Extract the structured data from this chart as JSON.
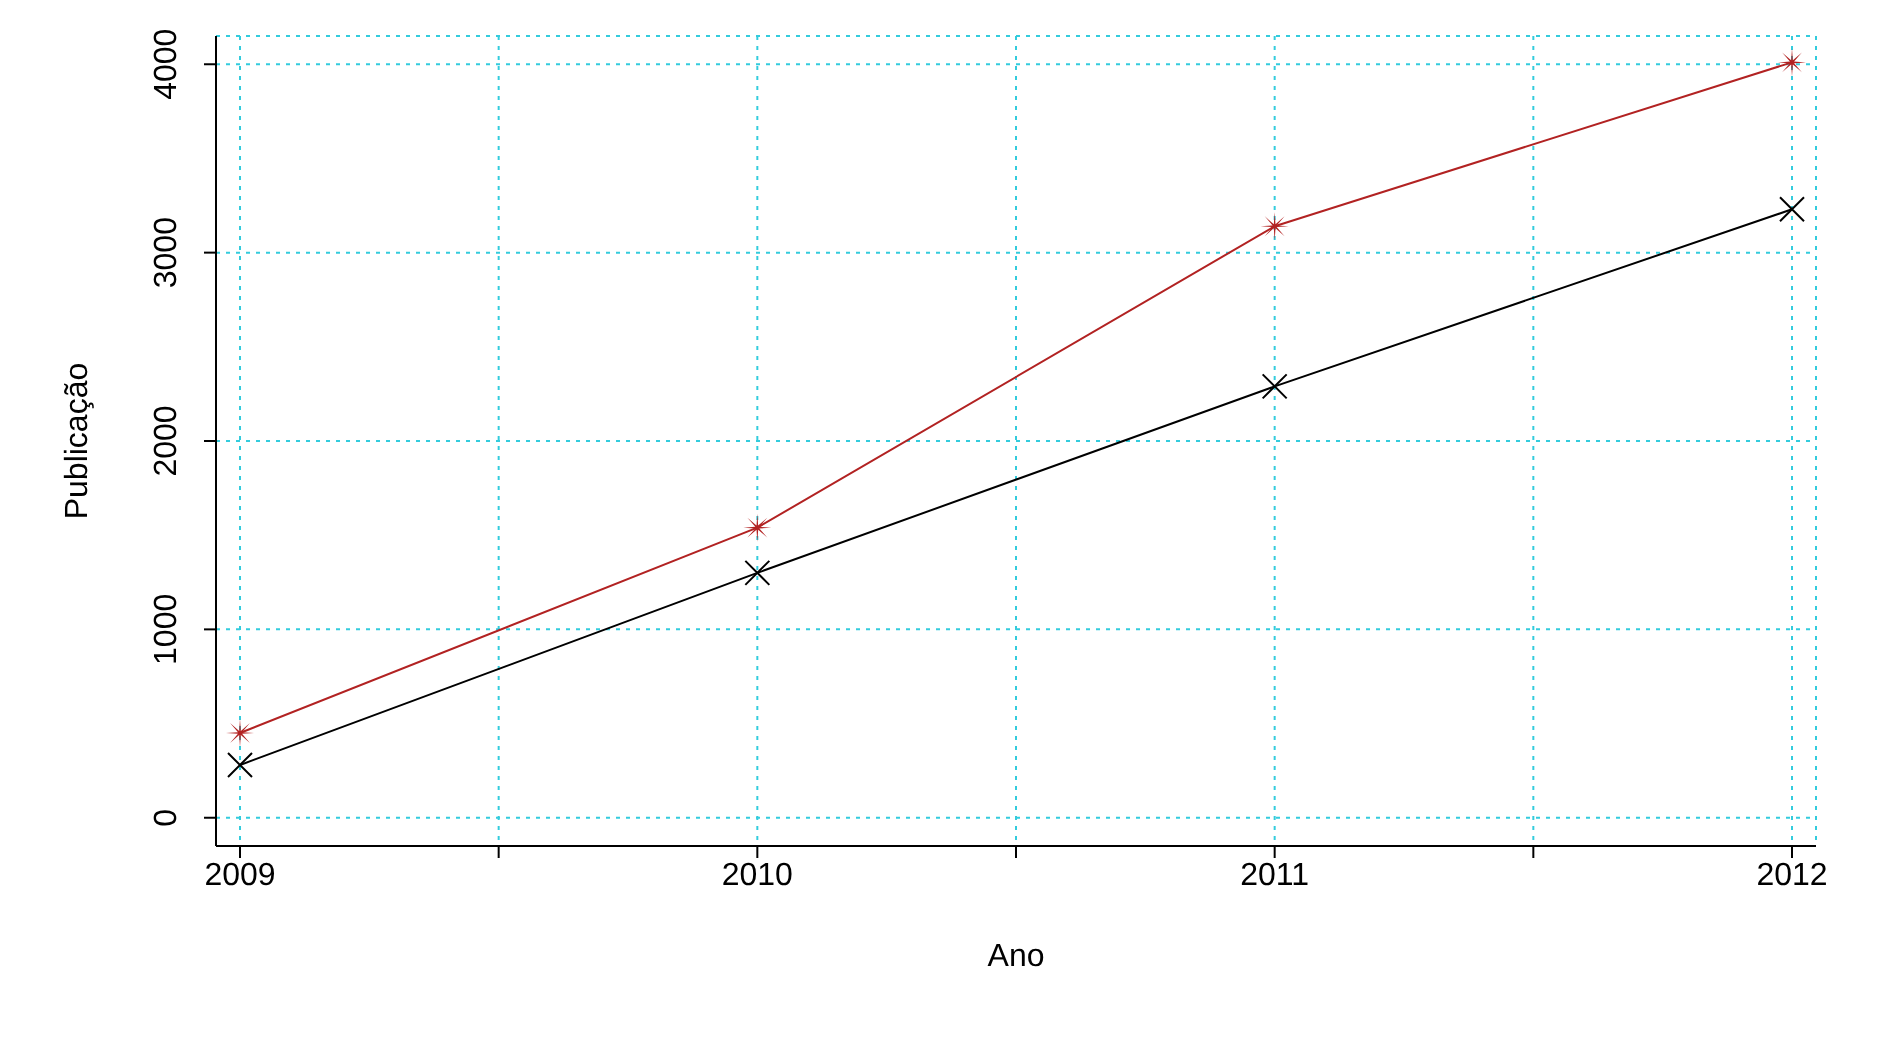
{
  "chart_data": {
    "type": "line",
    "xlabel": "Ano",
    "ylabel": "Publicação",
    "x": [
      2009,
      2010,
      2011,
      2012
    ],
    "series": [
      {
        "color": "#000000",
        "marker": "cross",
        "values": [
          280,
          1300,
          2290,
          3230
        ]
      },
      {
        "color": "#b22222",
        "marker": "star",
        "values": [
          450,
          1540,
          3140,
          4010
        ]
      }
    ],
    "xlim": [
      2009,
      2012
    ],
    "xticks": [
      2009,
      {
        "value": 2009.5,
        "label": null
      },
      2010,
      {
        "value": 2010.5,
        "label": null
      },
      2011,
      {
        "value": 2011.5,
        "label": null
      },
      2012
    ],
    "ylim": [
      -150,
      4150
    ],
    "yticks": [
      0,
      1000,
      2000,
      3000,
      4000
    ],
    "grid": true,
    "legend": false,
    "line_style": "solid"
  }
}
